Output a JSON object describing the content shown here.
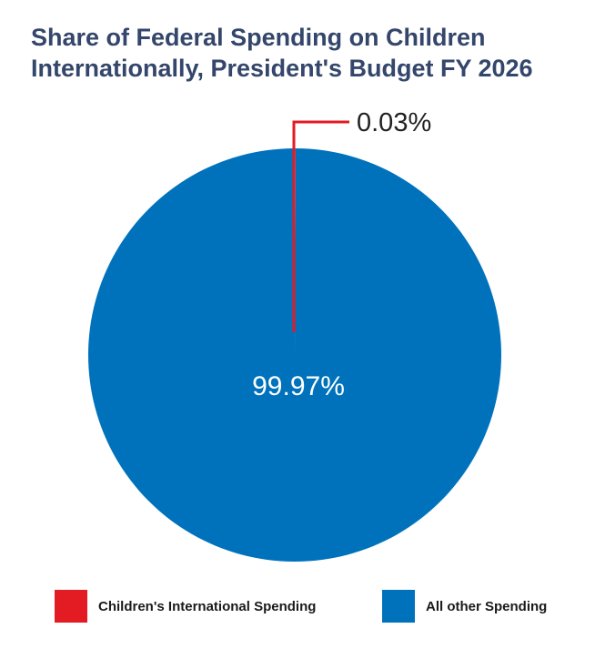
{
  "chart_data": {
    "type": "pie",
    "title_lines": [
      "Share of Federal Spending on Children",
      "Internationally, President's Budget FY 2026"
    ],
    "slices": [
      {
        "name": "Children's International Spending",
        "value": 0.03,
        "label": "0.03%",
        "color": "#e31b23"
      },
      {
        "name": "All other Spending",
        "value": 99.97,
        "label": "99.97%",
        "color": "#0072bc"
      }
    ],
    "legend": {
      "placement": "bottom"
    }
  },
  "colors": {
    "title": "#34466b",
    "callout_text": "#222222",
    "inner_label": "#ffffff"
  }
}
